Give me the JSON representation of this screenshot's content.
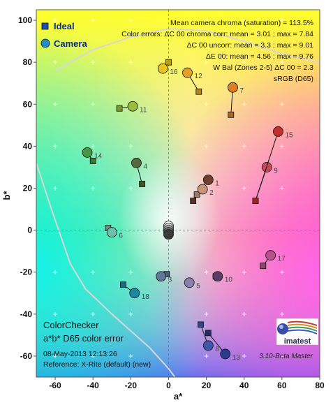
{
  "chart_data": {
    "type": "scatter",
    "xlabel": "a*",
    "ylabel": "b*",
    "xlim": [
      -70,
      80
    ],
    "ylim": [
      -70,
      105
    ],
    "xticks": [
      -60,
      -40,
      -20,
      0,
      20,
      40,
      60,
      80
    ],
    "yticks": [
      -60,
      -40,
      -20,
      0,
      20,
      40,
      60,
      80,
      100
    ],
    "legend": {
      "position": "top-left",
      "ideal_label": "Ideal",
      "camera_label": "Camera"
    },
    "stats_lines": [
      "Mean camera chroma (saturation) = 113.5%",
      "Color errors: ΔC 00 chroma corr:  mean = 3.01 ;  max = 7.84",
      "ΔC 00 uncorr:  mean = 3.3 ;  max = 9.01",
      "ΔE 00:  mean = 4.56 ;  max = 9.76",
      "W Bal (Zones 2-5)  ΔC 00 = 2.3",
      "sRGB (D65)"
    ],
    "bottom_left": {
      "title1": "ColorChecker",
      "title2": "a*b* D65 color error",
      "date": "08-May-2013 12:13:26",
      "reference": "Reference: X-Rite (default) (new)"
    },
    "version": "3.10-Beta  Master",
    "logo_text": "imatest",
    "patches": [
      {
        "n": "1",
        "ideal": [
          13,
          14
        ],
        "camera": [
          21,
          24
        ],
        "color": "#6e4030"
      },
      {
        "n": "2",
        "ideal": [
          15,
          17
        ],
        "camera": [
          18,
          19.5
        ],
        "color": "#c8957c"
      },
      {
        "n": "3",
        "ideal": [
          -1,
          -21
        ],
        "camera": [
          -4,
          -22
        ],
        "color": "#5e7896"
      },
      {
        "n": "4",
        "ideal": [
          -14,
          22
        ],
        "camera": [
          -17,
          32
        ],
        "color": "#56693a"
      },
      {
        "n": "5",
        "ideal": [
          11,
          -25
        ],
        "camera": [
          11,
          -25
        ],
        "color": "#8a80b0"
      },
      {
        "n": "6",
        "ideal": [
          -32,
          1
        ],
        "camera": [
          -30,
          -1
        ],
        "color": "#6fbfae"
      },
      {
        "n": "7",
        "ideal": [
          33,
          55
        ],
        "camera": [
          34,
          68
        ],
        "color": "#e07c22"
      },
      {
        "n": "8",
        "ideal": [
          17,
          -45
        ],
        "camera": [
          21,
          -55
        ],
        "color": "#3e57ad"
      },
      {
        "n": "9",
        "ideal": [
          46,
          14
        ],
        "camera": [
          52,
          30
        ],
        "color": "#c84a58"
      },
      {
        "n": "10",
        "ideal": [
          25,
          -22
        ],
        "camera": [
          26,
          -22
        ],
        "color": "#5a3a68"
      },
      {
        "n": "11",
        "ideal": [
          -26,
          58
        ],
        "camera": [
          -19,
          59
        ],
        "color": "#9cbc3c"
      },
      {
        "n": "12",
        "ideal": [
          16,
          66
        ],
        "camera": [
          10,
          75
        ],
        "color": "#e3a128"
      },
      {
        "n": "13",
        "ideal": [
          21,
          -49
        ],
        "camera": [
          30,
          -59
        ],
        "color": "#2a3a8e"
      },
      {
        "n": "14",
        "ideal": [
          -40,
          33
        ],
        "camera": [
          -43,
          37
        ],
        "color": "#479748"
      },
      {
        "n": "15",
        "ideal": [
          46,
          14
        ],
        "camera": [
          58,
          47
        ],
        "color": "#c42e2e"
      },
      {
        "n": "16",
        "ideal": [
          0,
          80
        ],
        "camera": [
          -3,
          77
        ],
        "color": "#e8c51e"
      },
      {
        "n": "17",
        "ideal": [
          50,
          -17
        ],
        "camera": [
          54,
          -12
        ],
        "color": "#bb508f"
      },
      {
        "n": "18",
        "ideal": [
          -24,
          -26
        ],
        "camera": [
          -18,
          -30
        ],
        "color": "#1a87a5"
      }
    ],
    "neutral_points": [
      [
        0,
        2
      ],
      [
        0,
        1
      ],
      [
        0,
        0
      ],
      [
        0,
        -1
      ],
      [
        0,
        -2
      ]
    ]
  }
}
